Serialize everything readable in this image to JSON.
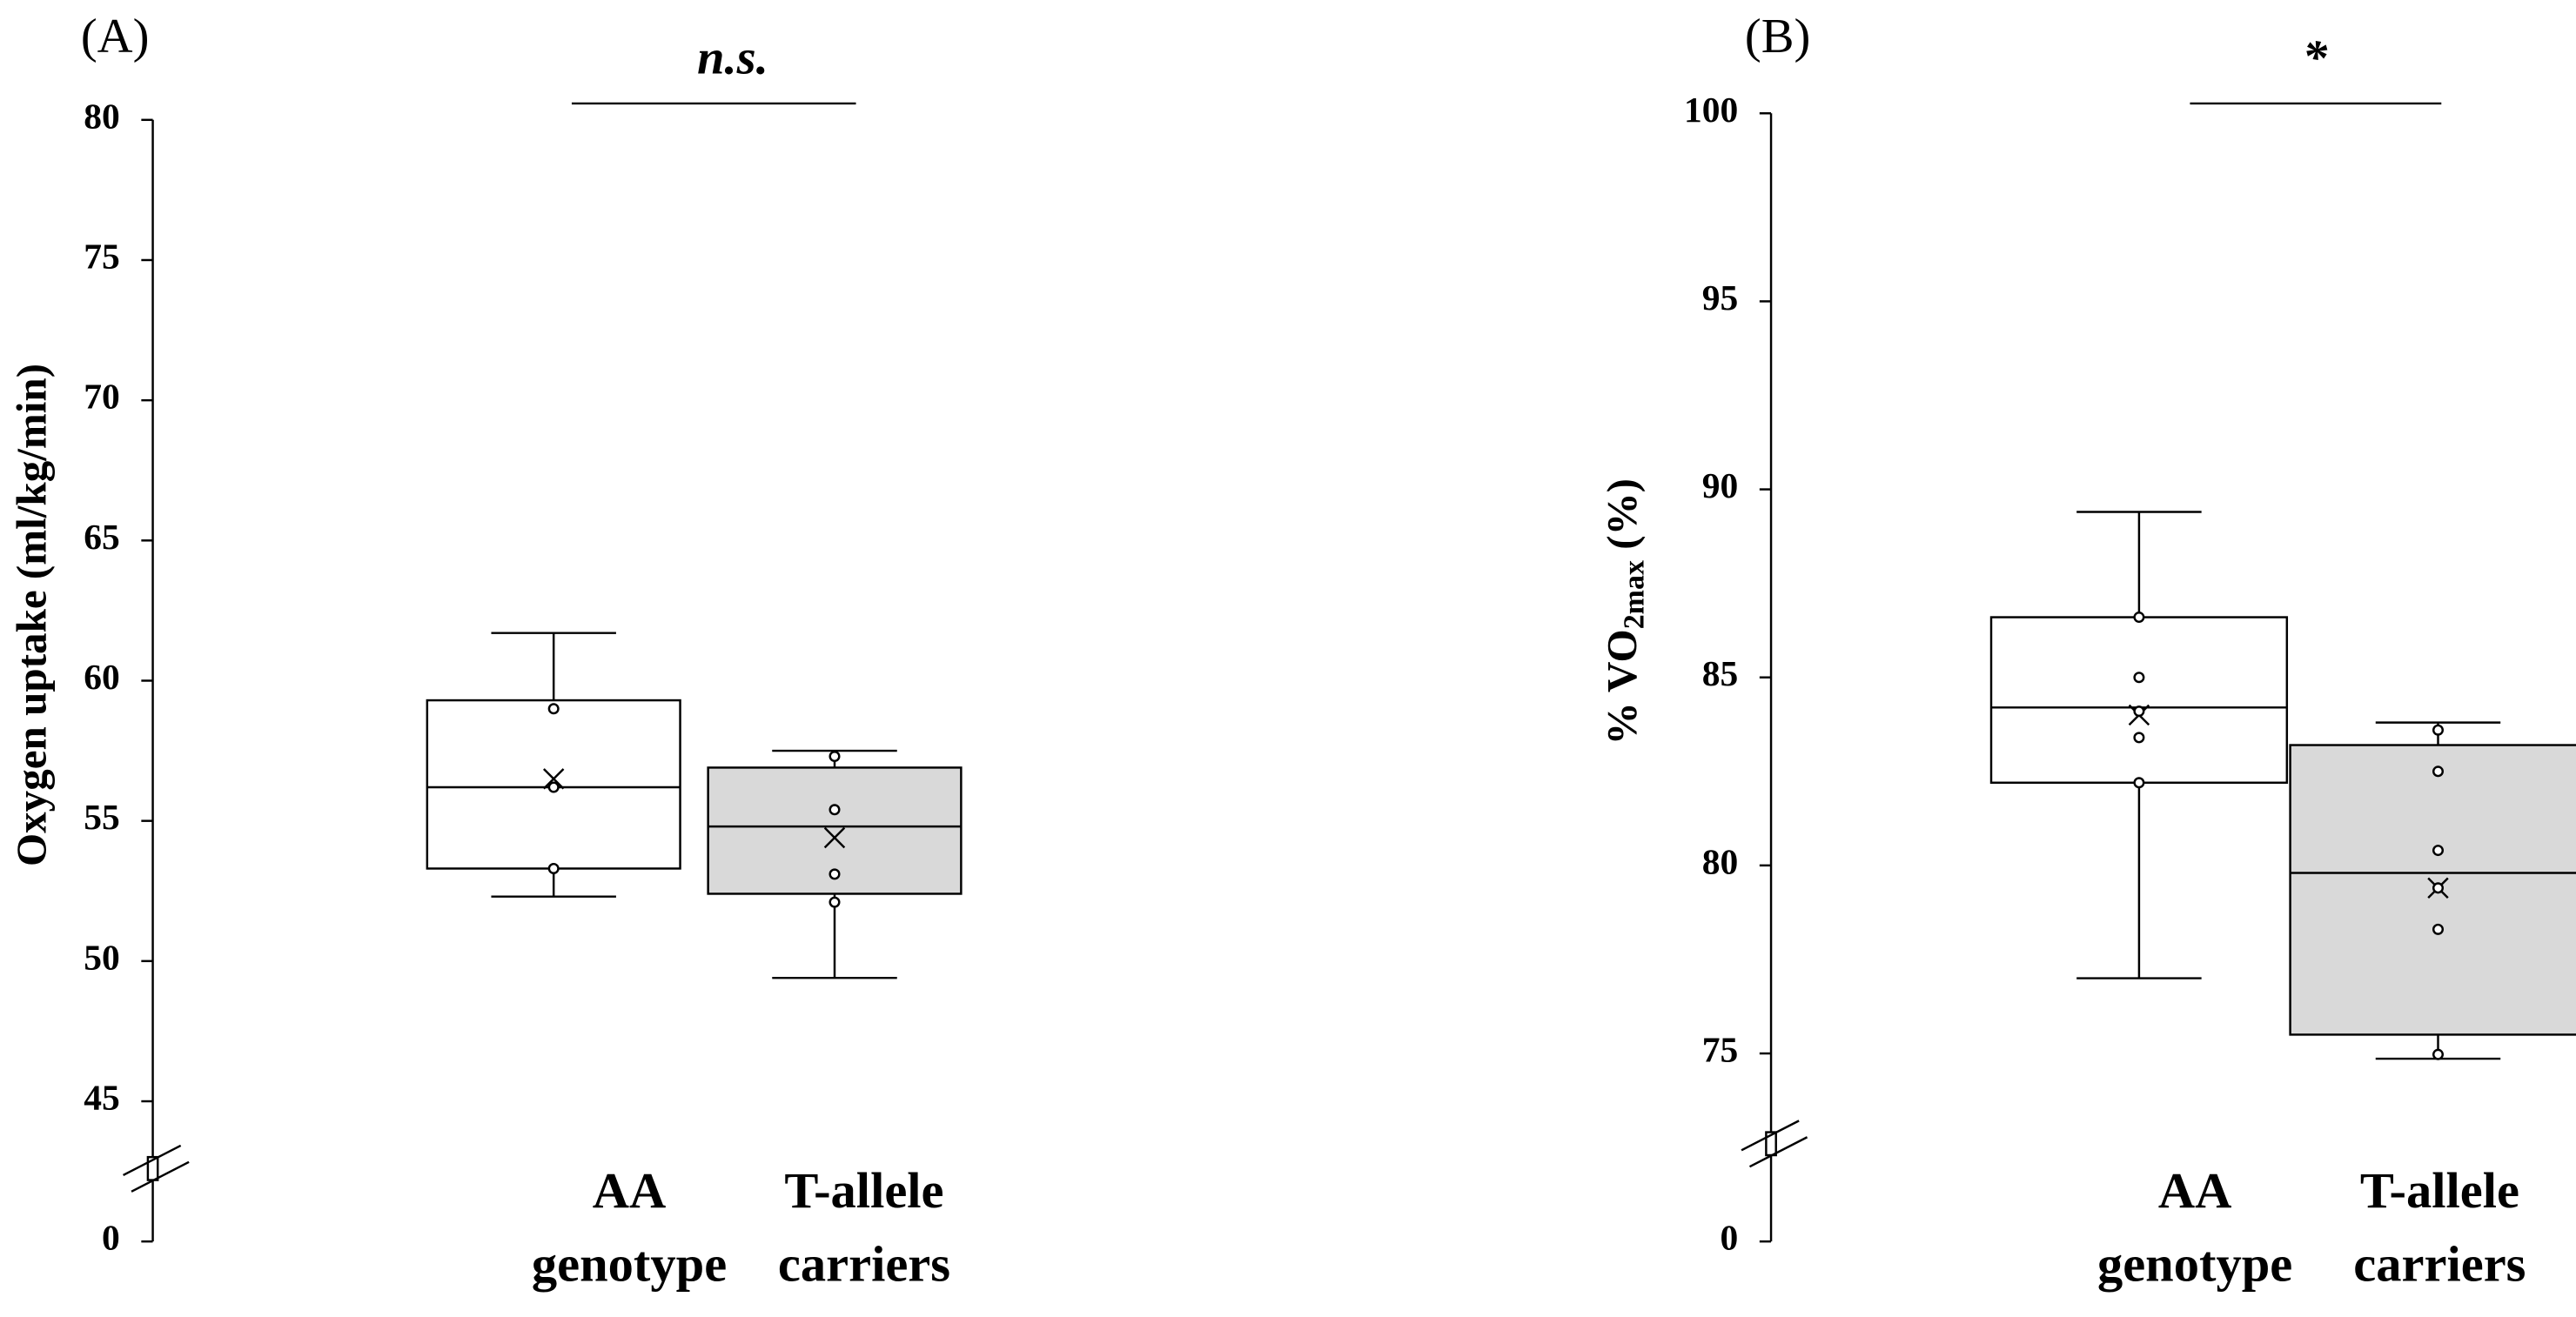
{
  "chart_data": [
    {
      "type": "box",
      "panel_label": "(A)",
      "significance": "n.s.",
      "ylabel": {
        "text": "Oxygen uptake (ml/kg/min)"
      },
      "ylim": [
        0,
        80
      ],
      "axis_break": [
        0,
        45
      ],
      "yticks": [
        0,
        45,
        50,
        55,
        60,
        65,
        70,
        75,
        80
      ],
      "categories": [
        [
          "AA",
          "genotype"
        ],
        [
          "T-allele",
          "carriers"
        ]
      ],
      "boxes": [
        {
          "color": "#ffffff",
          "min": 52.3,
          "q1": 53.3,
          "median": 56.2,
          "q3": 59.3,
          "max": 61.7,
          "mean": 56.5,
          "points": [
            59.0,
            56.2,
            53.3
          ]
        },
        {
          "color": "#d9d9d9",
          "min": 49.4,
          "q1": 52.4,
          "median": 54.8,
          "q3": 56.9,
          "max": 57.5,
          "mean": 54.4,
          "points": [
            57.3,
            55.4,
            53.1,
            52.1
          ]
        }
      ]
    },
    {
      "type": "box",
      "panel_label": "(B)",
      "significance": "*",
      "ylabel": {
        "text": "% VO",
        "sub": "2max",
        "after": " (%)"
      },
      "ylim": [
        0,
        100
      ],
      "axis_break": [
        0,
        75
      ],
      "yticks": [
        0,
        75,
        80,
        85,
        90,
        95,
        100
      ],
      "categories": [
        [
          "AA",
          "genotype"
        ],
        [
          "T-allele",
          "carriers"
        ]
      ],
      "boxes": [
        {
          "color": "#ffffff",
          "min": 77.0,
          "q1": 82.2,
          "median": 84.2,
          "q3": 86.6,
          "max": 89.4,
          "mean": 84.0,
          "points": [
            86.6,
            85.0,
            84.1,
            83.4,
            82.2
          ]
        },
        {
          "color": "#d9d9d9",
          "min": 72.9,
          "q1": 75.5,
          "median": 79.8,
          "q3": 83.2,
          "max": 83.8,
          "mean": 79.4,
          "points": [
            83.6,
            82.5,
            80.4,
            79.4,
            78.3,
            74.6
          ]
        }
      ]
    }
  ]
}
